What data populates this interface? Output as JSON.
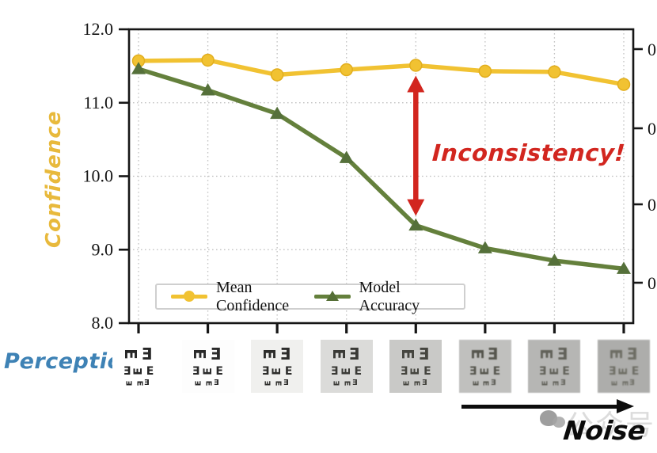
{
  "chart_data": {
    "type": "line",
    "title": "",
    "xlabel": "",
    "ylabel_left": "Confidence",
    "num_points": 8,
    "ylim": [
      8.0,
      12.0
    ],
    "yticks_left": [
      "12.0",
      "11.0",
      "10.0",
      "9.0",
      "8.0"
    ],
    "gridline_values": [
      11.0,
      10.0,
      9.0
    ],
    "grid": "dotted",
    "right_axis_tick_labels": [
      "0",
      "0",
      "0",
      "0"
    ],
    "legend_position": "lower center",
    "series": [
      {
        "name": "Mean Confidence",
        "color": "#F1C232",
        "marker": "circle",
        "values": [
          11.57,
          11.58,
          11.38,
          11.45,
          11.51,
          11.43,
          11.42,
          11.25
        ]
      },
      {
        "name": "Model Accuracy",
        "color": "#64803C",
        "marker": "triangle",
        "values": [
          11.46,
          11.17,
          10.85,
          10.25,
          9.33,
          9.02,
          8.85,
          8.74
        ]
      }
    ]
  },
  "annotation": {
    "text": "Inconsistency!",
    "color": "#D2261F",
    "arrow_point_index": 4
  },
  "legend": {
    "items": [
      {
        "label": "Mean Confidence"
      },
      {
        "label": "Model Accuracy"
      }
    ]
  },
  "perception": {
    "label": "Perception",
    "label_color": "#3E82B5",
    "glyph_char": "E",
    "rows": [
      {
        "size": "lg",
        "orientations": [
          "down",
          "left"
        ]
      },
      {
        "size": "md",
        "orientations": [
          "left",
          "up",
          "right"
        ]
      },
      {
        "size": "sm",
        "orientations": [
          "up",
          "down",
          "left"
        ]
      }
    ],
    "tiles": [
      {
        "bg": "#ffffff",
        "glyph": "#262626",
        "blur": 0
      },
      {
        "bg": "#fdfdfd",
        "glyph": "#2a2a2a",
        "blur": 0
      },
      {
        "bg": "#f0f0ee",
        "glyph": "#2d2d2b",
        "blur": 0
      },
      {
        "bg": "#dbdbd9",
        "glyph": "#3a3a36",
        "blur": 0.2
      },
      {
        "bg": "#c9c9c7",
        "glyph": "#45453f",
        "blur": 0.3
      },
      {
        "bg": "#c0c0be",
        "glyph": "#56564e",
        "blur": 0.5
      },
      {
        "bg": "#b6b6b4",
        "glyph": "#62625a",
        "blur": 0.6
      },
      {
        "bg": "#adadab",
        "glyph": "#6d6d64",
        "blur": 0.8
      }
    ]
  },
  "noise": {
    "label": "Noise"
  },
  "watermark": {
    "text": "公众号"
  }
}
